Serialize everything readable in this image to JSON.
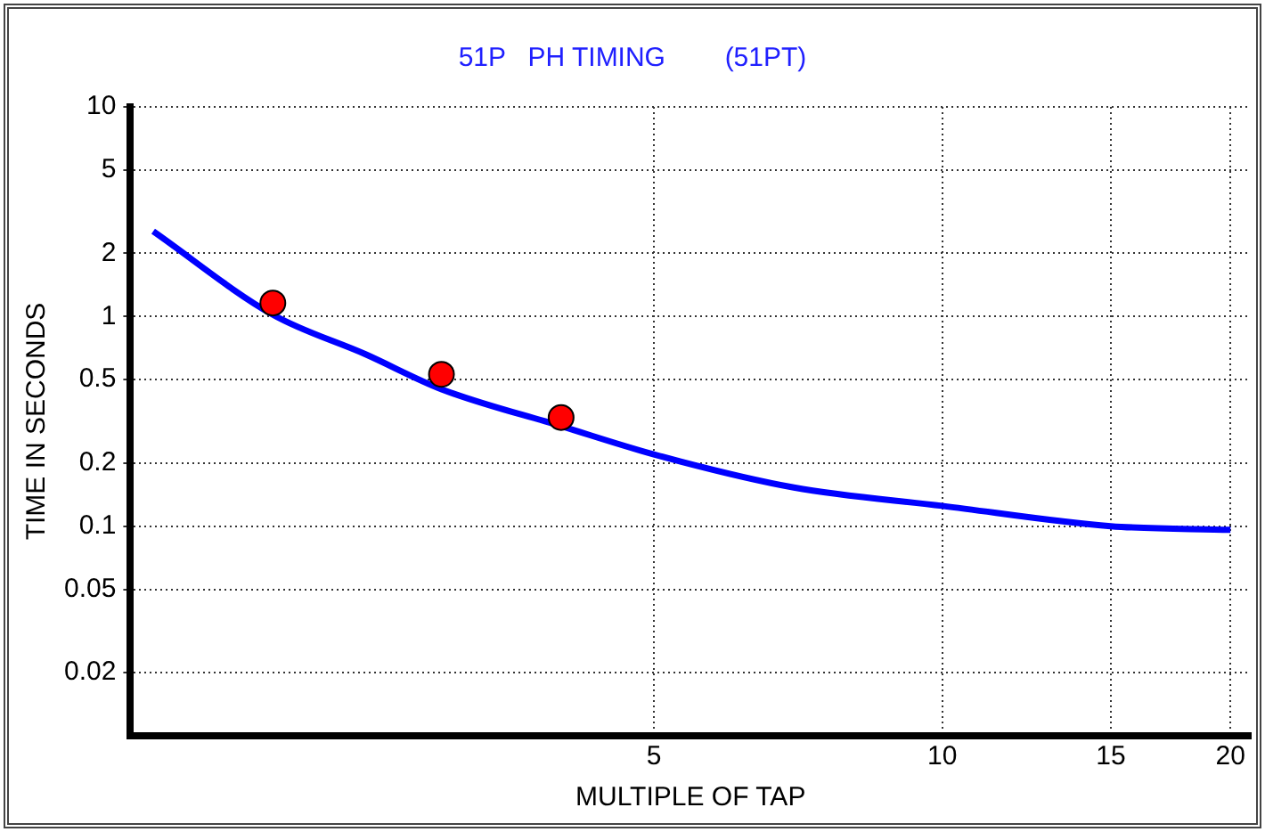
{
  "chart_data": {
    "type": "line",
    "title": "51P   PH TIMING        (51PT)",
    "xlabel": "MULTIPLE OF TAP",
    "ylabel": "TIME IN SECONDS",
    "log": "xy",
    "grid": true,
    "xlim": [
      1.42,
      21
    ],
    "xticks": [
      5,
      10,
      15,
      20
    ],
    "ylim": [
      0.01,
      10
    ],
    "yticks": [
      0.02,
      0.05,
      0.1,
      0.2,
      0.5,
      1,
      2,
      5,
      10
    ],
    "series": [
      {
        "color": "#0000ff",
        "marker": "none",
        "x": [
          1.5,
          2,
          2.5,
          3,
          4,
          5,
          7,
          10,
          15,
          20
        ],
        "values": [
          2.55,
          1.02,
          0.66,
          0.45,
          0.3,
          0.22,
          0.153,
          0.125,
          0.1,
          0.096
        ]
      },
      {
        "type": "scatter",
        "color": "#ff0000",
        "marker": "circle",
        "x": [
          2,
          3,
          4
        ],
        "values": [
          1.16,
          0.53,
          0.33
        ]
      }
    ]
  }
}
